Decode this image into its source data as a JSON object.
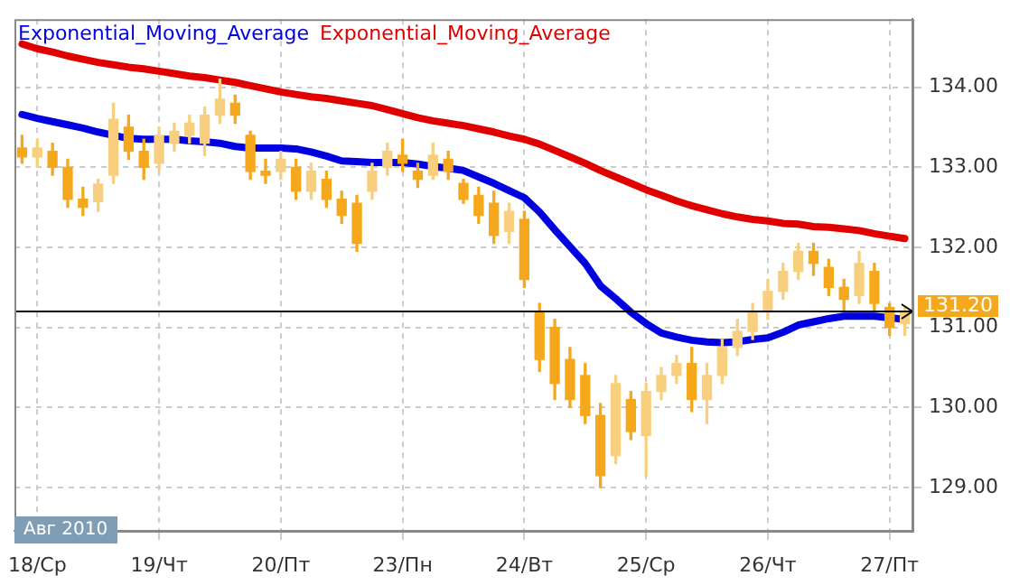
{
  "chart_data": {
    "type": "candlestick",
    "colors": [
      "#f5a81c",
      "#f8cf7e",
      "#f5a81c",
      "#f5a81c",
      "#f5a81c",
      "#f8cf7e",
      "#f8cf7e",
      "#f5a81c",
      "#f5a81c",
      "#f8cf7e",
      "#f8cf7e",
      "#f8cf7e",
      "#f8cf7e",
      "#f8cf7e",
      "#f5a81c",
      "#f5a81c",
      "#f5a81c",
      "#f8cf7e",
      "#f5a81c",
      "#f8cf7e",
      "#f5a81c",
      "#f5a81c",
      "#f5a81c",
      "#f8cf7e",
      "#f8cf7e",
      "#f5a81c",
      "#f5a81c",
      "#f8cf7e",
      "#f5a81c",
      "#f5a81c",
      "#f5a81c",
      "#f5a81c",
      "#f8cf7e",
      "#f5a81c",
      "#f5a81c",
      "#f5a81c",
      "#f5a81c",
      "#f5a81c",
      "#f5a81c",
      "#f8cf7e",
      "#f5a81c",
      "#f8cf7e",
      "#f8cf7e",
      "#f8cf7e",
      "#f5a81c",
      "#f8cf7e",
      "#f8cf7e",
      "#f8cf7e",
      "#f8cf7e",
      "#f8cf7e",
      "#f8cf7e",
      "#f8cf7e",
      "#f5a81c",
      "#f5a81c",
      "#f5a81c",
      "#f8cf7e",
      "#f5a81c",
      "#f5a81c",
      "#f8cf7e"
    ],
    "categories": [
      null,
      "18/Ср",
      null,
      null,
      null,
      null,
      null,
      null,
      null,
      "19/Чт",
      null,
      null,
      null,
      null,
      null,
      null,
      null,
      "20/Пт",
      null,
      null,
      null,
      null,
      null,
      null,
      null,
      "23/Пн",
      null,
      null,
      null,
      null,
      null,
      null,
      null,
      "24/Вт",
      null,
      null,
      null,
      null,
      null,
      null,
      null,
      "25/Ср",
      null,
      null,
      null,
      null,
      null,
      null,
      null,
      "26/Чт",
      null,
      null,
      null,
      null,
      null,
      null,
      null,
      "27/Пт",
      null
    ],
    "ohlc": [
      [
        133.24,
        133.4,
        133.05,
        133.13
      ],
      [
        133.13,
        133.35,
        133.0,
        133.24
      ],
      [
        133.2,
        133.3,
        132.9,
        133.0
      ],
      [
        133.0,
        133.1,
        132.5,
        132.6
      ],
      [
        132.6,
        132.75,
        132.4,
        132.5
      ],
      [
        132.57,
        132.85,
        132.45,
        132.79
      ],
      [
        132.9,
        133.8,
        132.8,
        133.6
      ],
      [
        133.5,
        133.65,
        133.1,
        133.2
      ],
      [
        133.2,
        133.35,
        132.85,
        133.0
      ],
      [
        133.05,
        133.5,
        132.95,
        133.4
      ],
      [
        133.3,
        133.55,
        133.2,
        133.45
      ],
      [
        133.4,
        133.65,
        133.3,
        133.55
      ],
      [
        133.3,
        133.75,
        133.15,
        133.65
      ],
      [
        133.65,
        134.1,
        133.55,
        133.85
      ],
      [
        133.8,
        133.9,
        133.55,
        133.65
      ],
      [
        133.4,
        133.45,
        132.85,
        132.95
      ],
      [
        132.95,
        133.1,
        132.8,
        132.9
      ],
      [
        132.95,
        133.2,
        132.85,
        133.1
      ],
      [
        133.0,
        133.1,
        132.6,
        132.7
      ],
      [
        132.7,
        133.05,
        132.6,
        132.95
      ],
      [
        132.85,
        132.95,
        132.5,
        132.6
      ],
      [
        132.6,
        132.7,
        132.3,
        132.4
      ],
      [
        132.55,
        132.65,
        131.95,
        132.05
      ],
      [
        132.7,
        133.05,
        132.6,
        132.95
      ],
      [
        133.0,
        133.3,
        132.9,
        133.2
      ],
      [
        133.15,
        133.35,
        132.95,
        133.05
      ],
      [
        132.95,
        133.05,
        132.75,
        132.85
      ],
      [
        132.9,
        133.3,
        132.85,
        133.15
      ],
      [
        133.1,
        133.2,
        132.85,
        132.95
      ],
      [
        132.8,
        132.85,
        132.55,
        132.6
      ],
      [
        132.65,
        132.75,
        132.3,
        132.4
      ],
      [
        132.55,
        132.7,
        132.05,
        132.15
      ],
      [
        132.2,
        132.55,
        132.05,
        132.45
      ],
      [
        132.35,
        132.45,
        131.5,
        131.6
      ],
      [
        131.2,
        131.3,
        130.45,
        130.6
      ],
      [
        131.0,
        131.1,
        130.1,
        130.3
      ],
      [
        130.6,
        130.75,
        130.0,
        130.1
      ],
      [
        130.4,
        130.55,
        129.8,
        129.9
      ],
      [
        129.9,
        130.05,
        129.0,
        129.15
      ],
      [
        129.4,
        130.4,
        129.3,
        130.3
      ],
      [
        130.1,
        130.2,
        129.6,
        129.7
      ],
      [
        129.65,
        130.3,
        129.15,
        130.2
      ],
      [
        130.2,
        130.5,
        130.1,
        130.4
      ],
      [
        130.4,
        130.65,
        130.3,
        130.55
      ],
      [
        130.55,
        130.75,
        129.95,
        130.1
      ],
      [
        130.1,
        130.55,
        129.8,
        130.4
      ],
      [
        130.4,
        130.85,
        130.3,
        130.75
      ],
      [
        130.75,
        131.1,
        130.65,
        130.95
      ],
      [
        130.95,
        131.3,
        130.85,
        131.2
      ],
      [
        131.2,
        131.6,
        131.1,
        131.45
      ],
      [
        131.45,
        131.8,
        131.35,
        131.7
      ],
      [
        131.7,
        132.05,
        131.6,
        131.95
      ],
      [
        131.95,
        132.05,
        131.65,
        131.8
      ],
      [
        131.75,
        131.85,
        131.4,
        131.5
      ],
      [
        131.5,
        131.6,
        131.2,
        131.35
      ],
      [
        131.4,
        131.95,
        131.3,
        131.8
      ],
      [
        131.7,
        131.8,
        131.2,
        131.3
      ],
      [
        131.25,
        131.3,
        130.9,
        131.0
      ],
      [
        131.05,
        131.25,
        130.9,
        131.2
      ]
    ],
    "series": [
      {
        "name": "Exponential_Moving_Average",
        "type": "line",
        "color": "#0000e0",
        "values": [
          133.66,
          133.61,
          133.57,
          133.53,
          133.49,
          133.44,
          133.4,
          133.36,
          133.35,
          133.35,
          133.35,
          133.33,
          133.32,
          133.3,
          133.26,
          133.24,
          133.24,
          133.24,
          133.23,
          133.19,
          133.14,
          133.08,
          133.07,
          133.06,
          133.06,
          133.06,
          133.04,
          133.01,
          132.99,
          132.96,
          132.88,
          132.8,
          132.71,
          132.62,
          132.44,
          132.22,
          132.01,
          131.8,
          131.52,
          131.36,
          131.19,
          131.05,
          130.93,
          130.88,
          130.84,
          130.82,
          130.81,
          130.82,
          130.85,
          130.87,
          130.94,
          131.03,
          131.07,
          131.11,
          131.14,
          131.14,
          131.14,
          131.12,
          131.1
        ]
      },
      {
        "name": "Exponential_Moving_Average",
        "type": "line",
        "color": "#e00000",
        "values": [
          134.54,
          134.48,
          134.44,
          134.39,
          134.35,
          134.31,
          134.28,
          134.25,
          134.23,
          134.2,
          134.17,
          134.14,
          134.12,
          134.09,
          134.06,
          134.02,
          133.98,
          133.94,
          133.91,
          133.88,
          133.86,
          133.83,
          133.8,
          133.77,
          133.72,
          133.67,
          133.62,
          133.58,
          133.55,
          133.52,
          133.48,
          133.44,
          133.39,
          133.35,
          133.29,
          133.21,
          133.13,
          133.05,
          132.96,
          132.88,
          132.8,
          132.72,
          132.65,
          132.58,
          132.52,
          132.47,
          132.42,
          132.38,
          132.35,
          132.33,
          132.3,
          132.29,
          132.26,
          132.25,
          132.23,
          132.21,
          132.17,
          132.14,
          132.11
        ]
      }
    ],
    "ylim": [
      128.46,
      134.85
    ],
    "yticks": [
      {
        "value": 129,
        "label": "129.00"
      },
      {
        "value": 130,
        "label": "130.00"
      },
      {
        "value": 131,
        "label": "131.00"
      },
      {
        "value": 132,
        "label": "132.00"
      },
      {
        "value": 133,
        "label": "133.00"
      },
      {
        "value": 134,
        "label": "134.00"
      }
    ],
    "ref_lines": [
      {
        "axis": "y",
        "value": 131.2,
        "label": "131.20",
        "color": "#000000"
      }
    ],
    "annotations": [
      "Авг 2010"
    ],
    "grid": true,
    "legend": "top left"
  }
}
